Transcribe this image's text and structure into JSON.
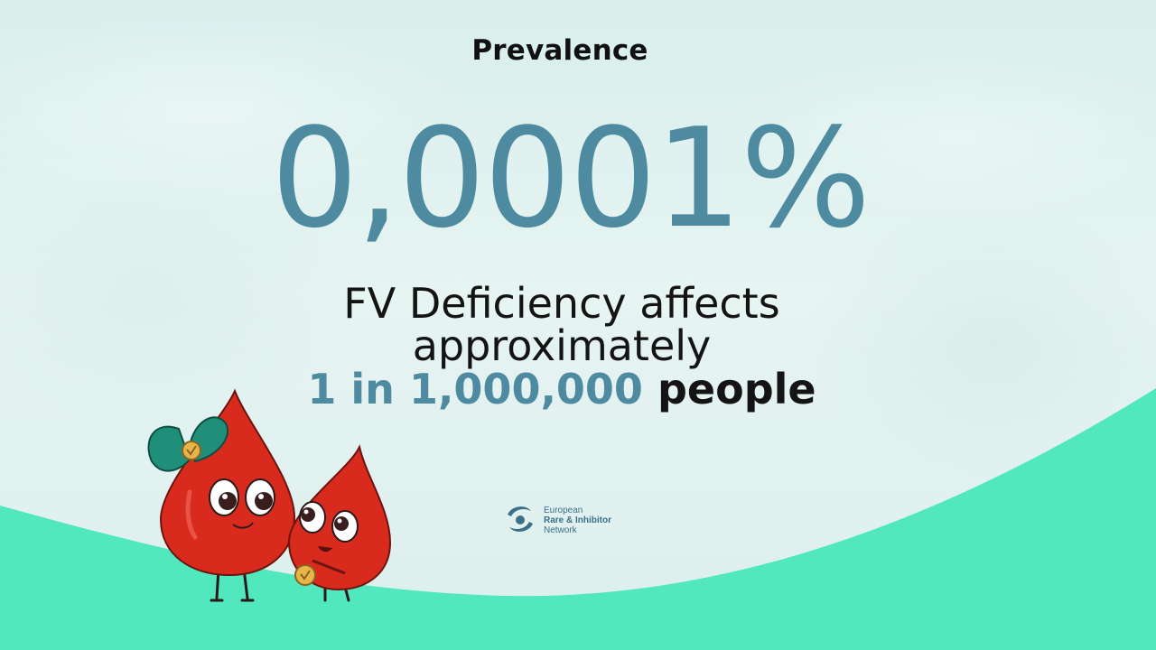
{
  "colors": {
    "background": "#e3f3f1",
    "wave": "#52e8bd",
    "accent_blue": "#4e8ba0",
    "text_dark": "#141414",
    "drop_red": "#d92a1e",
    "bow_green": "#1f8f7a",
    "medal_gold": "#e8b54a"
  },
  "slide": {
    "title": "Prevalence",
    "big_number": "0,0001%",
    "line1": "FV Deficiency affects",
    "line2": "approximately",
    "line3_highlight": "1 in 1,000,000",
    "line3_rest": "people"
  },
  "logo": {
    "icon": "ern-logo-icon",
    "line1": "European",
    "line2": "Rare & Inhibitor",
    "line3": "Network"
  },
  "illustration": {
    "icon": "blood-drop-mascots-icon"
  }
}
